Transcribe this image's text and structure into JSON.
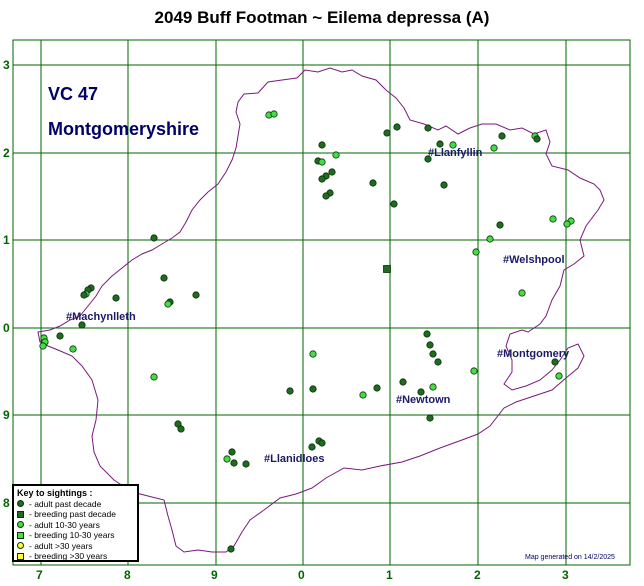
{
  "title": "2049 Buff Footman ~ Eilema depressa (A)",
  "vc": {
    "line1": "VC 47",
    "line2": "Montgomeryshire"
  },
  "axes": {
    "bottom": [
      "7",
      "8",
      "9",
      "0",
      "1",
      "2",
      "3"
    ],
    "left": [
      "3",
      "2",
      "1",
      "0",
      "9",
      "9",
      "8"
    ]
  },
  "towns": [
    {
      "name": "#Llanfyllin"
    },
    {
      "name": "#Welshpool"
    },
    {
      "name": "#Machynlleth"
    },
    {
      "name": "#Montgomery"
    },
    {
      "name": "#Newtown"
    },
    {
      "name": "#Llanidloes"
    }
  ],
  "key": {
    "title": "Key to sightings :",
    "rows": [
      {
        "label": "- adult past decade",
        "shape": "circle",
        "color": "#1f6b1f"
      },
      {
        "label": "- breeding past decade",
        "shape": "square",
        "color": "#1f6b1f"
      },
      {
        "label": "- adult 10-30 years",
        "shape": "circle",
        "color": "#44dd44"
      },
      {
        "label": "- breeding 10-30 years",
        "shape": "square",
        "color": "#44dd44"
      },
      {
        "label": "- adult >30 years",
        "shape": "circle",
        "color": "#ffff33"
      },
      {
        "label": "- breeding >30 years",
        "shape": "square",
        "color": "#ffff33"
      }
    ]
  },
  "footer": "Map generated on 14/2/2025",
  "colors": {
    "grid": "#006600",
    "boundary": "#7a1a7a",
    "adult_past_decade": "#1f6b1f",
    "adult_10_30": "#44dd44",
    "breeding_past_decade": "#1f6b1f"
  },
  "sightings": [
    {
      "t": "recent"
    },
    {
      "t": "recent"
    },
    {
      "t": "recent"
    },
    {
      "t": "recent"
    },
    {
      "t": "recent"
    },
    {
      "t": "recent"
    },
    {
      "t": "old"
    },
    {
      "t": "old"
    }
  ]
}
